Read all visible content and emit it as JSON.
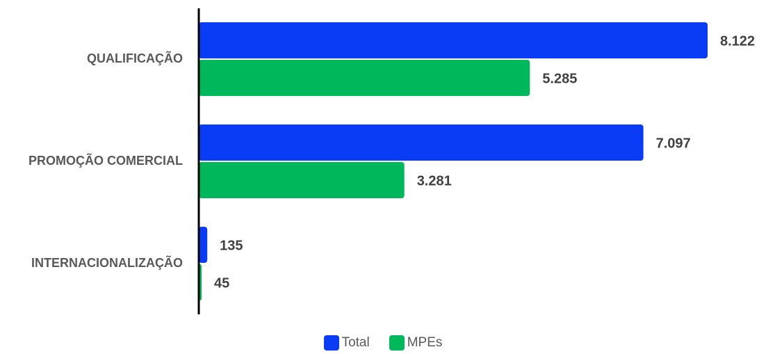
{
  "chart_data": {
    "type": "bar",
    "orientation": "horizontal",
    "categories": [
      "QUALIFICAÇÃO",
      "PROMOÇÃO COMERCIAL",
      "INTERNACIONALIZAÇÃO"
    ],
    "series": [
      {
        "name": "Total",
        "values": [
          8122,
          7097,
          135
        ],
        "labels": [
          "8.122",
          "7.097",
          "135"
        ],
        "color": "#0a3cf5"
      },
      {
        "name": "MPEs",
        "values": [
          5285,
          3281,
          45
        ],
        "labels": [
          "5.285",
          "3.281",
          "45"
        ],
        "color": "#00b85c"
      }
    ],
    "xlim": [
      0,
      8122
    ],
    "grid": false,
    "legend_position": "bottom"
  }
}
